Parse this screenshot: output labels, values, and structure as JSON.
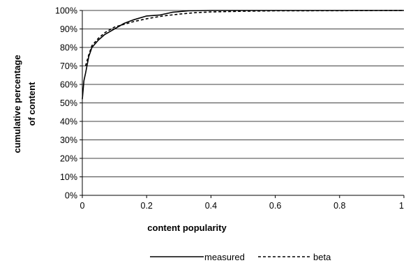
{
  "chart_data": {
    "type": "line",
    "xlabel": "content popularity",
    "ylabel": [
      "cumulative percentage",
      "of content"
    ],
    "xlim": [
      0,
      1
    ],
    "ylim": [
      0,
      100
    ],
    "x_ticks": [
      "0",
      "0.2",
      "0.4",
      "0.6",
      "0.8",
      "1"
    ],
    "y_ticks": [
      "0%",
      "10%",
      "20%",
      "30%",
      "40%",
      "50%",
      "60%",
      "70%",
      "80%",
      "90%",
      "100%"
    ],
    "grid": "horizontal",
    "legend_position": "bottom",
    "series": [
      {
        "name": "measured",
        "style": "solid",
        "x": [
          0,
          0.005,
          0.01,
          0.02,
          0.03,
          0.05,
          0.07,
          0.1,
          0.13,
          0.16,
          0.2,
          0.24,
          0.28,
          0.33,
          0.4,
          0.5,
          0.6,
          0.8,
          1.0
        ],
        "y": [
          52,
          62,
          66,
          75,
          80,
          84,
          87,
          90,
          93,
          95,
          97,
          97.5,
          99,
          99.8,
          100,
          100,
          100,
          100,
          100
        ]
      },
      {
        "name": "beta",
        "style": "dashed",
        "x": [
          0.01,
          0.02,
          0.03,
          0.05,
          0.07,
          0.1,
          0.13,
          0.16,
          0.2,
          0.25,
          0.3,
          0.35,
          0.4,
          0.5,
          0.6,
          0.8,
          1.0
        ],
        "y": [
          70,
          76,
          81,
          85,
          88,
          91,
          92.5,
          94,
          95.5,
          97,
          98,
          98.8,
          99.2,
          99.6,
          99.8,
          99.9,
          100
        ]
      }
    ]
  }
}
